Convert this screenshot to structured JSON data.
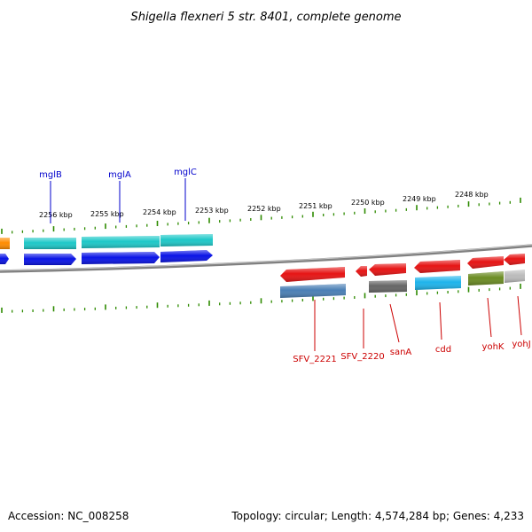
{
  "title": "Shigella flexneri 5 str. 8401, complete genome",
  "footer": {
    "accession": "Accession: NC_008258",
    "summary": "Topology: circular; Length: 4,574,284 bp; Genes: 4,233"
  },
  "scale_ticks": [
    {
      "label": "2256 kbp"
    },
    {
      "label": "2255 kbp"
    },
    {
      "label": "2254 kbp"
    },
    {
      "label": "2253 kbp"
    },
    {
      "label": "2252 kbp"
    },
    {
      "label": "2251 kbp"
    },
    {
      "label": "2250 kbp"
    },
    {
      "label": "2249 kbp"
    },
    {
      "label": "2248 kbp"
    }
  ],
  "upper_gene_labels": [
    {
      "name": "mglB"
    },
    {
      "name": "mglA"
    },
    {
      "name": "mglC"
    }
  ],
  "lower_gene_labels": [
    {
      "name": "SFV_2221"
    },
    {
      "name": "SFV_2220"
    },
    {
      "name": "sanA"
    },
    {
      "name": "cdd"
    },
    {
      "name": "yohK"
    },
    {
      "name": "yohJ"
    }
  ],
  "colors": {
    "upper_label": "#0000cc",
    "lower_label": "#cc0000",
    "tick_green": "#2e8b00",
    "backbone": "#808080",
    "blue_gene": "#0a14e6",
    "cyan_gene": "#1ec8c8",
    "orange_gene": "#ff8c00",
    "red_gene": "#e61414",
    "steel_gene": "#4a7fb5",
    "dark_gray_gene": "#666666",
    "sky_gene": "#1eb4eb",
    "olive_gene": "#6b8c23",
    "light_gray_gene": "#bbbbbb"
  }
}
